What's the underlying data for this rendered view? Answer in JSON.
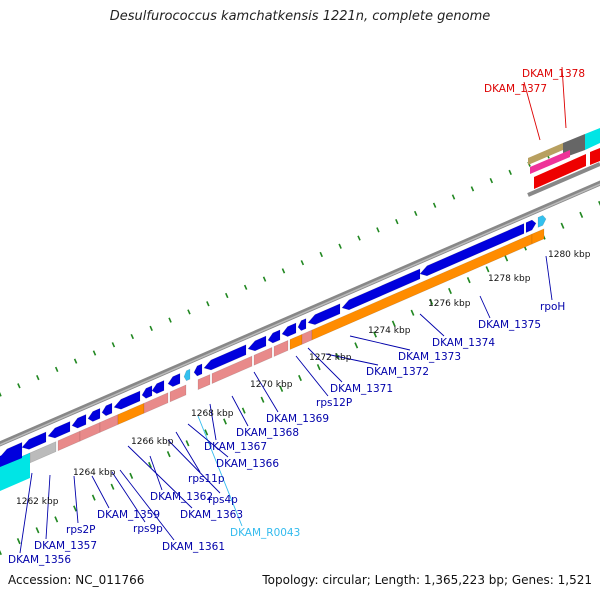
{
  "title": "Desulfurococcus kamchatkensis 1221n, complete genome",
  "footer": {
    "accession": "Accession: NC_011766",
    "topology": "Topology: circular; Length: 1,365,223 bp; Genes: 1,521"
  },
  "colors": {
    "cds": "#0000dd",
    "gene": "#ff8c00",
    "pseudo": "#e88a8a",
    "trna": "#33c0ee",
    "rrna": "#00e5e5",
    "label_cds": "#0000aa",
    "label_trna": "#33bbee",
    "label_other": "#dd0000",
    "backbone": "#888888",
    "tick": "#228822"
  },
  "scale_labels": [
    "1262 kbp",
    "1264 kbp",
    "1266 kbp",
    "1268 kbp",
    "1270 kbp",
    "1272 kbp",
    "1274 kbp",
    "1276 kbp",
    "1278 kbp",
    "1280 kbp"
  ],
  "gene_labels": [
    {
      "text": "DKAM_1356",
      "kind": "cds"
    },
    {
      "text": "DKAM_1357",
      "kind": "cds"
    },
    {
      "text": "rps2P",
      "kind": "cds"
    },
    {
      "text": "DKAM_1359",
      "kind": "cds"
    },
    {
      "text": "rps9p",
      "kind": "cds"
    },
    {
      "text": "DKAM_1361",
      "kind": "cds"
    },
    {
      "text": "DKAM_1362",
      "kind": "cds"
    },
    {
      "text": "DKAM_1363",
      "kind": "cds"
    },
    {
      "text": "rps11p",
      "kind": "cds"
    },
    {
      "text": "rps4p",
      "kind": "cds"
    },
    {
      "text": "DKAM_R0043",
      "kind": "trna"
    },
    {
      "text": "DKAM_1366",
      "kind": "cds"
    },
    {
      "text": "DKAM_1367",
      "kind": "cds"
    },
    {
      "text": "DKAM_1368",
      "kind": "cds"
    },
    {
      "text": "DKAM_1369",
      "kind": "cds"
    },
    {
      "text": "rps12P",
      "kind": "cds"
    },
    {
      "text": "DKAM_1371",
      "kind": "cds"
    },
    {
      "text": "DKAM_1372",
      "kind": "cds"
    },
    {
      "text": "DKAM_1373",
      "kind": "cds"
    },
    {
      "text": "DKAM_1374",
      "kind": "cds"
    },
    {
      "text": "DKAM_1375",
      "kind": "cds"
    },
    {
      "text": "rpoH",
      "kind": "cds"
    },
    {
      "text": "DKAM_1377",
      "kind": "other"
    },
    {
      "text": "DKAM_1378",
      "kind": "other"
    }
  ]
}
